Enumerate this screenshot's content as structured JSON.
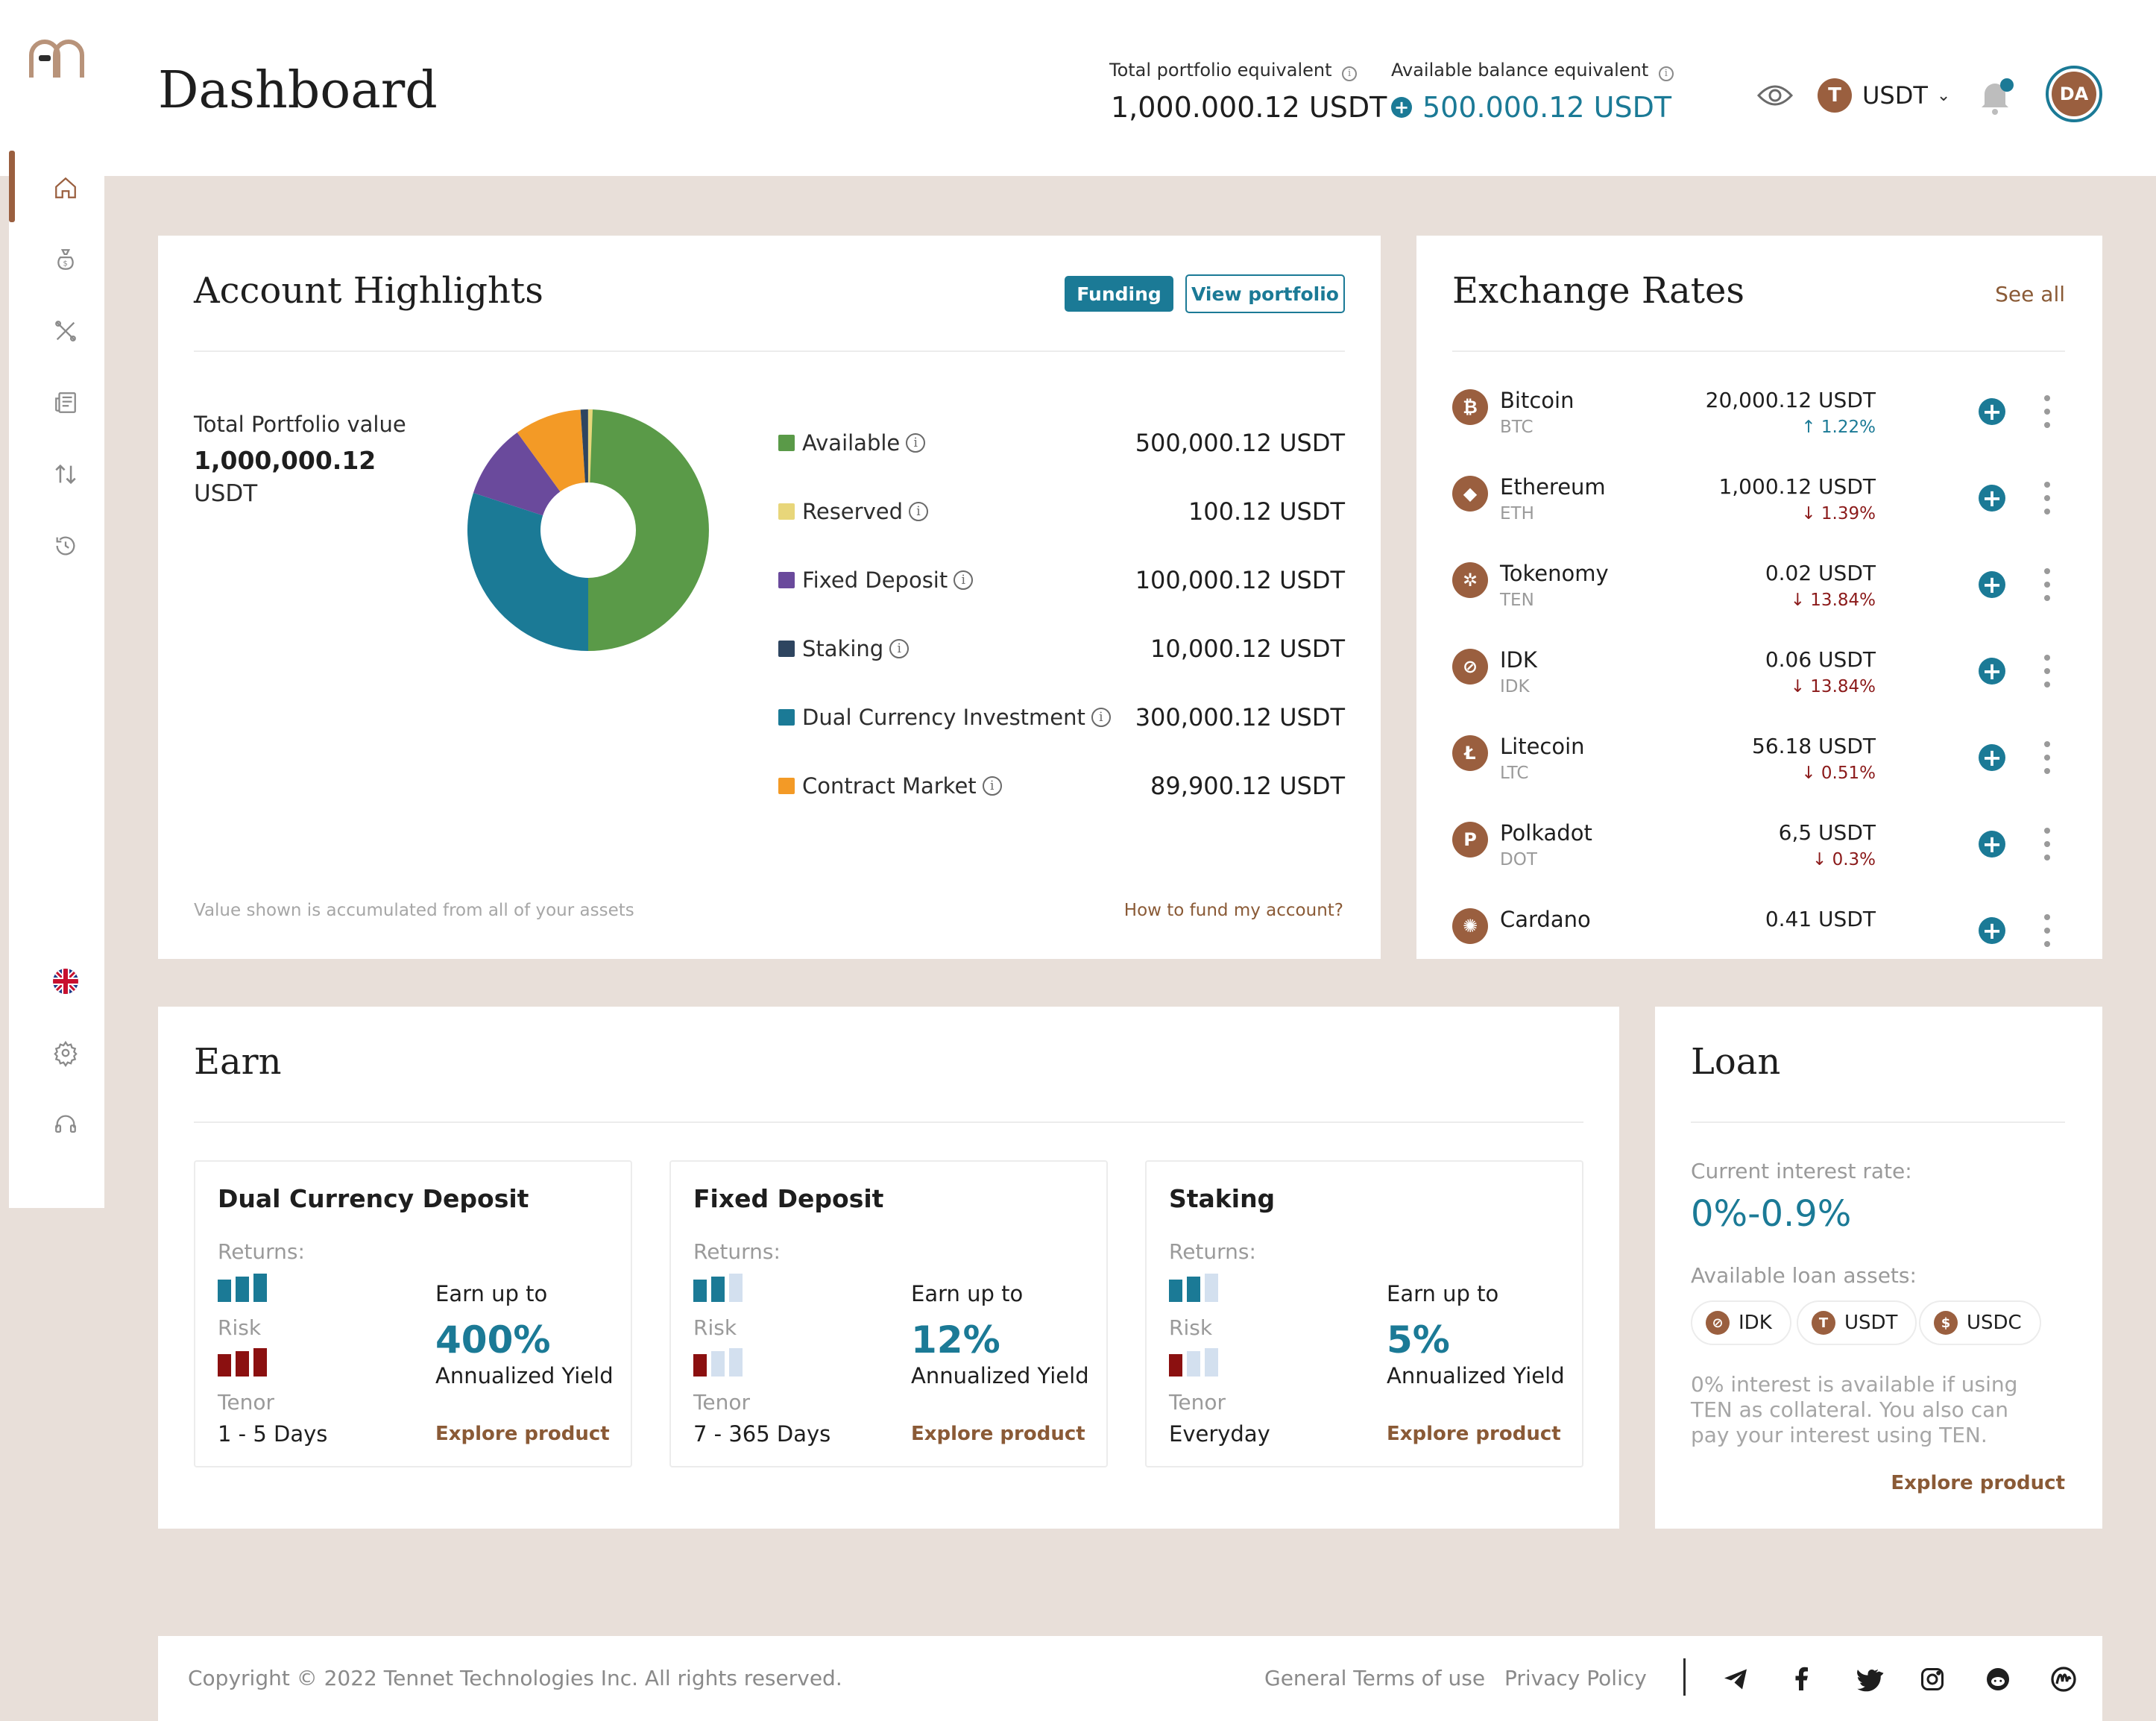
{
  "header": {
    "page_title": "Dashboard",
    "total_label": "Total portfolio equivalent",
    "total_value": "1,000.000.12",
    "total_unit": "USDT",
    "available_label": "Available balance equivalent",
    "available_value": "500.000.12",
    "available_unit": "USDT",
    "currency": "USDT",
    "avatar_initials": "DA"
  },
  "sidebar": {
    "items": [
      "home-icon",
      "money-bag-icon",
      "tools-icon",
      "news-icon",
      "transfer-icon",
      "history-icon"
    ],
    "bottom": [
      "uk-flag-icon",
      "settings-icon",
      "support-icon"
    ]
  },
  "highlights": {
    "title": "Account Highlights",
    "funding_label": "Funding",
    "view_portfolio_label": "View portfolio",
    "total_label": "Total Portfolio value",
    "total_value": "1,000,000.12",
    "total_unit": "USDT",
    "footnote": "Value shown is accumulated from all of your assets",
    "fund_link": "How to fund my account?",
    "legend": [
      {
        "label": "Available",
        "value": "500,000.12 USDT",
        "color": "#5a9a48"
      },
      {
        "label": "Reserved",
        "value": "100.12 USDT",
        "color": "#e8d67a"
      },
      {
        "label": "Fixed Deposit",
        "value": "100,000.12 USDT",
        "color": "#6a4a9c"
      },
      {
        "label": "Staking",
        "value": "10,000.12 USDT",
        "color": "#2e4560"
      },
      {
        "label": "Dual Currency Investment",
        "value": "300,000.12 USDT",
        "color": "#1b7a96"
      },
      {
        "label": "Contract Market",
        "value": "89,900.12 USDT",
        "color": "#f39a26"
      }
    ]
  },
  "chart_data": {
    "type": "pie",
    "categories": [
      "Available",
      "Reserved",
      "Fixed Deposit",
      "Staking",
      "Dual Currency Investment",
      "Contract Market"
    ],
    "values": [
      500000.12,
      100.12,
      100000.12,
      10000.12,
      300000.12,
      89900.12
    ],
    "colors": [
      "#5a9a48",
      "#e8d67a",
      "#6a4a9c",
      "#2e4560",
      "#1b7a96",
      "#f39a26"
    ],
    "title": ""
  },
  "exchange": {
    "title": "Exchange Rates",
    "see_all": "See all",
    "rows": [
      {
        "name": "Bitcoin",
        "symbol": "BTC",
        "value": "20,000.12 USDT",
        "change": "1.22%",
        "dir": "up",
        "icon": "bitcoin-icon",
        "glyph": "₿"
      },
      {
        "name": "Ethereum",
        "symbol": "ETH",
        "value": "1,000.12 USDT",
        "change": "1.39%",
        "dir": "down",
        "icon": "ethereum-icon",
        "glyph": "◆"
      },
      {
        "name": "Tokenomy",
        "symbol": "TEN",
        "value": "0.02 USDT",
        "change": "13.84%",
        "dir": "down",
        "icon": "tokenomy-icon",
        "glyph": "✲"
      },
      {
        "name": "IDK",
        "symbol": "IDK",
        "value": "0.06 USDT",
        "change": "13.84%",
        "dir": "down",
        "icon": "idk-icon",
        "glyph": "⊘"
      },
      {
        "name": "Litecoin",
        "symbol": "LTC",
        "value": "56.18 USDT",
        "change": "0.51%",
        "dir": "down",
        "icon": "litecoin-icon",
        "glyph": "Ł"
      },
      {
        "name": "Polkadot",
        "symbol": "DOT",
        "value": "6,5 USDT",
        "change": "0.3%",
        "dir": "down",
        "icon": "polkadot-icon",
        "glyph": "P"
      },
      {
        "name": "Cardano",
        "symbol": "",
        "value": "0.41 USDT",
        "change": "",
        "dir": "",
        "icon": "cardano-icon",
        "glyph": "✺"
      }
    ]
  },
  "earn": {
    "title": "Earn",
    "products": [
      {
        "title": "Dual Currency Deposit",
        "returns_label": "Returns:",
        "risk_label": "Risk",
        "tenor_label": "Tenor",
        "tenor": "1 - 5 Days",
        "earn_label": "Earn up to",
        "pct": "400%",
        "yield_label": "Annualized Yield",
        "explore": "Explore product",
        "returns_level": 3,
        "risk_level": 3
      },
      {
        "title": "Fixed Deposit",
        "returns_label": "Returns:",
        "risk_label": "Risk",
        "tenor_label": "Tenor",
        "tenor": "7 - 365 Days",
        "earn_label": "Earn up to",
        "pct": "12%",
        "yield_label": "Annualized Yield",
        "explore": "Explore product",
        "returns_level": 2,
        "risk_level": 1
      },
      {
        "title": "Staking",
        "returns_label": "Returns:",
        "risk_label": "Risk",
        "tenor_label": "Tenor",
        "tenor": "Everyday",
        "earn_label": "Earn up to",
        "pct": "5%",
        "yield_label": "Annualized Yield",
        "explore": "Explore product",
        "returns_level": 2,
        "risk_level": 1
      }
    ]
  },
  "loan": {
    "title": "Loan",
    "rate_label": "Current interest rate:",
    "rate": "0%-0.9%",
    "assets_label": "Available loan assets:",
    "assets": [
      "IDK",
      "USDT",
      "USDC"
    ],
    "note": "0% interest is available if using TEN as collateral. You also can pay your interest using TEN.",
    "explore": "Explore product"
  },
  "footer": {
    "copyright": "Copyright © 2022 Tennet Technologies Inc. All rights reserved.",
    "terms": "General Terms of use",
    "privacy": "Privacy Policy",
    "socials": [
      "telegram-icon",
      "facebook-icon",
      "twitter-icon",
      "instagram-icon",
      "reddit-icon",
      "medium-icon"
    ]
  },
  "colors": {
    "accent": "#1b7a96",
    "brand": "#9a5f3f",
    "background": "#e8dfd9",
    "down": "#8b1a1a"
  }
}
